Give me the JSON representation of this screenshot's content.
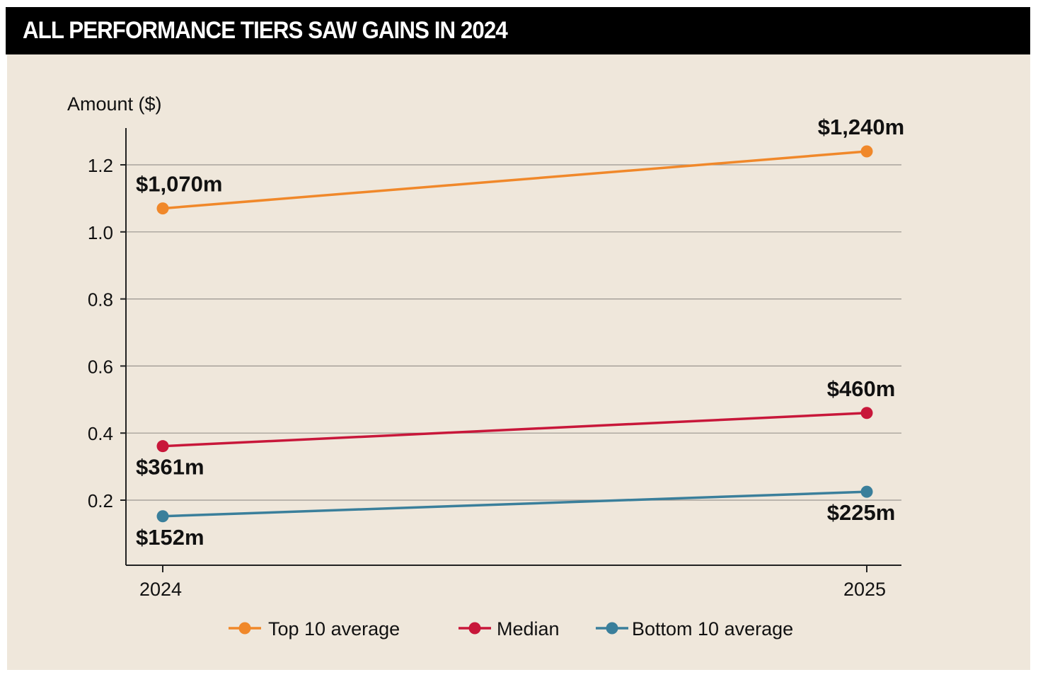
{
  "title": "ALL PERFORMANCE TIERS SAW GAINS IN 2024",
  "colors": {
    "banner_bg": "#000000",
    "banner_text": "#ffffff",
    "panel_bg": "#efe7db",
    "grid": "#9a958f",
    "axis": "#222222",
    "text": "#111111"
  },
  "chart_data": {
    "type": "line",
    "title": "ALL PERFORMANCE TIERS SAW GAINS IN 2024",
    "ylabel": "Amount ($)",
    "xlabel": "",
    "x": [
      "2024",
      "2025"
    ],
    "ylim": [
      0.0,
      1.3
    ],
    "yticks": [
      0.2,
      0.4,
      0.6,
      0.8,
      1.0,
      1.2
    ],
    "ytick_labels": [
      "0.2",
      "0.4",
      "0.6",
      "0.8",
      "1.0",
      "1.2"
    ],
    "grid": true,
    "legend": "bottom",
    "series": [
      {
        "name": "Top 10 average",
        "color": "#f0882a",
        "values": [
          1.07,
          1.24
        ],
        "labels": [
          "$1,070m",
          "$1,240m"
        ],
        "label_pos": [
          "above",
          "above"
        ]
      },
      {
        "name": "Median",
        "color": "#c8173a",
        "values": [
          0.361,
          0.46
        ],
        "labels": [
          "$361m",
          "$460m"
        ],
        "label_pos": [
          "below",
          "above"
        ]
      },
      {
        "name": "Bottom 10 average",
        "color": "#3a7f9b",
        "values": [
          0.152,
          0.225
        ],
        "labels": [
          "$152m",
          "$225m"
        ],
        "label_pos": [
          "below",
          "below"
        ]
      }
    ]
  }
}
